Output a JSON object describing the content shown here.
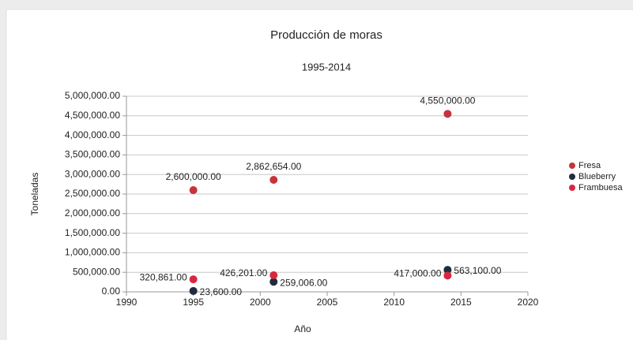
{
  "chart_data": {
    "type": "scatter",
    "title": "Producción de moras",
    "subtitle": "1995-2014",
    "x_label": "Año",
    "y_label": "Toneladas",
    "xlim": [
      1990,
      2020
    ],
    "xticks": [
      1990,
      1995,
      2000,
      2005,
      2010,
      2015,
      2020
    ],
    "ylim": [
      0,
      5000000
    ],
    "yticks": [
      {
        "value": 0,
        "label": "0.00"
      },
      {
        "value": 500000,
        "label": "500,000.00"
      },
      {
        "value": 1000000,
        "label": "1,000,000.00"
      },
      {
        "value": 1500000,
        "label": "1,500,000.00"
      },
      {
        "value": 2000000,
        "label": "2,000,000.00"
      },
      {
        "value": 2500000,
        "label": "2,500,000.00"
      },
      {
        "value": 3000000,
        "label": "3,000,000.00"
      },
      {
        "value": 3500000,
        "label": "3,500,000.00"
      },
      {
        "value": 4000000,
        "label": "4,000,000.00"
      },
      {
        "value": 4500000,
        "label": "4,500,000.00"
      },
      {
        "value": 5000000,
        "label": "5,000,000.00"
      }
    ],
    "grid": true,
    "legend": "right",
    "series": [
      {
        "name": "Fresa",
        "color": "#c8333a",
        "label_side": "top",
        "x": [
          1995,
          2001,
          2014
        ],
        "values": [
          2600000,
          2862654,
          4550000
        ],
        "value_labels": [
          "2,600,000.00",
          "2,862,654.00",
          "4,550,000.00"
        ]
      },
      {
        "name": "Blueberry",
        "color": "#1f2d3d",
        "label_side": "right",
        "x": [
          1995,
          2001,
          2014
        ],
        "values": [
          23600,
          259006,
          563100
        ],
        "value_labels": [
          "23,600.00",
          "259,006.00",
          "563,100.00"
        ]
      },
      {
        "name": "Frambuesa",
        "color": "#d8283f",
        "label_side": "left",
        "x": [
          1995,
          2001,
          2014
        ],
        "values": [
          320861,
          426201,
          417000
        ],
        "value_labels": [
          "320,861.00",
          "426,201.00",
          "417,000.00"
        ]
      }
    ]
  }
}
